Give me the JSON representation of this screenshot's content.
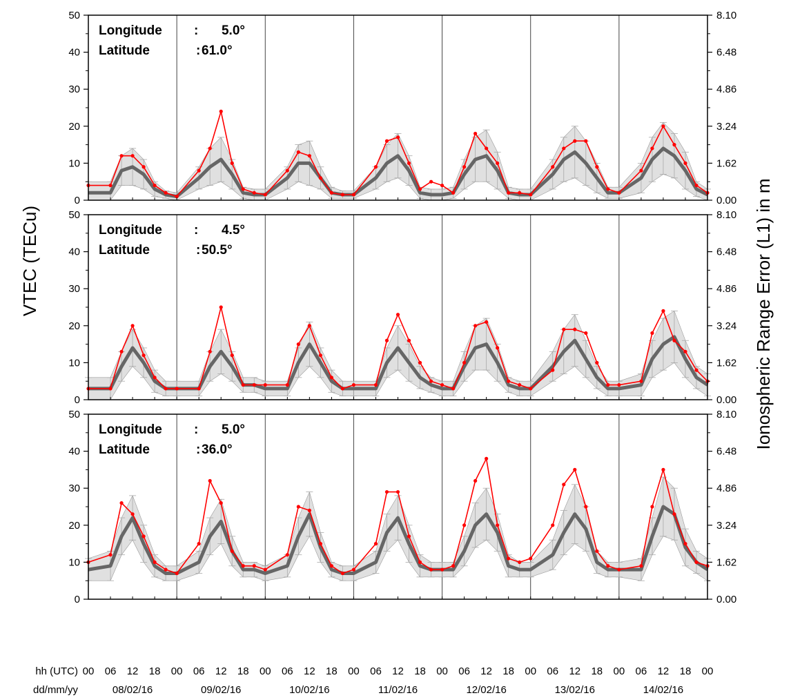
{
  "chart_data": {
    "type": "line",
    "ylabel": "VTEC (TECu)",
    "ylabel_right": "Ionospheric Range Error (L1) in m",
    "ylim": [
      0,
      50
    ],
    "y_ticks": [
      0,
      10,
      20,
      30,
      40,
      50
    ],
    "y2_ticks": [
      "0.00",
      "1.62",
      "3.24",
      "4.86",
      "6.48",
      "8.10"
    ],
    "x_row_labels": [
      "hh (UTC)",
      "dd/mm/yy"
    ],
    "hour_ticks": [
      "00",
      "06",
      "12",
      "18"
    ],
    "final_hour_tick": "00",
    "dates": [
      "08/02/16",
      "09/02/16",
      "10/02/16",
      "11/02/16",
      "12/02/16",
      "13/02/16",
      "14/02/16"
    ],
    "x_unit": "hours (UTC) from 08/02/16 00:00",
    "series_colors": {
      "current": "#ff0000",
      "median": "#666666",
      "band": "#bbbbbb"
    },
    "panels": [
      {
        "longitude_label": "Longitude",
        "longitude_sep": ":",
        "longitude_value": "5.0°",
        "latitude_label": "Latitude",
        "latitude_sep": ":",
        "latitude_value": "61.0°",
        "x": [
          0,
          6,
          9,
          12,
          15,
          18,
          21,
          24,
          30,
          33,
          36,
          39,
          42,
          45,
          48,
          54,
          57,
          60,
          63,
          66,
          69,
          72,
          78,
          81,
          84,
          87,
          90,
          93,
          96,
          99,
          102,
          105,
          108,
          111,
          114,
          117,
          120,
          126,
          129,
          132,
          135,
          138,
          141,
          144,
          150,
          153,
          156,
          159,
          162,
          165,
          168
        ],
        "current": [
          4,
          4,
          12,
          12,
          9,
          4,
          2,
          1,
          8,
          14,
          24,
          10,
          3,
          2,
          1.5,
          8,
          13,
          12,
          6,
          2,
          1.5,
          1.5,
          9,
          16,
          17,
          10,
          3,
          5,
          4,
          2,
          9,
          18,
          14,
          10,
          2,
          2,
          1.5,
          9,
          14,
          16,
          16,
          9,
          3,
          2,
          8,
          14,
          20,
          15,
          10,
          4,
          2
        ],
        "median": [
          2,
          2,
          8,
          9,
          7,
          3,
          1.5,
          1,
          6,
          9,
          11,
          7,
          2,
          1.5,
          1.5,
          6,
          10,
          10,
          6,
          2,
          1.5,
          1.5,
          6,
          10,
          12,
          8,
          2,
          1.5,
          1.5,
          2,
          7,
          11,
          12,
          8,
          2,
          1.5,
          1.5,
          7,
          11,
          13,
          10,
          6,
          2,
          2,
          6,
          11,
          14,
          12,
          8,
          3,
          1.5
        ],
        "band": [
          3,
          3,
          4,
          5,
          4,
          2,
          1,
          1,
          3,
          5,
          6,
          4,
          1.5,
          1.5,
          1.5,
          3,
          5,
          6,
          3,
          1.5,
          1,
          1,
          3,
          5,
          6,
          4,
          1.5,
          1.5,
          1.5,
          1.5,
          4,
          6,
          7,
          5,
          1.5,
          1.5,
          1.5,
          4,
          6,
          7,
          6,
          4,
          1.5,
          1.5,
          4,
          6,
          7,
          6,
          5,
          2,
          1.5
        ]
      },
      {
        "longitude_label": "Longitude",
        "longitude_sep": ":",
        "longitude_value": "4.5°",
        "latitude_label": "Latitude",
        "latitude_sep": ":",
        "latitude_value": "50.5°",
        "x": [
          0,
          6,
          9,
          12,
          15,
          18,
          21,
          24,
          30,
          33,
          36,
          39,
          42,
          45,
          48,
          54,
          57,
          60,
          63,
          66,
          69,
          72,
          78,
          81,
          84,
          87,
          90,
          93,
          96,
          99,
          102,
          105,
          108,
          111,
          114,
          117,
          120,
          126,
          129,
          132,
          135,
          138,
          141,
          144,
          150,
          153,
          156,
          159,
          162,
          165,
          168
        ],
        "current": [
          3,
          3,
          13,
          20,
          12,
          6,
          3,
          3,
          3,
          13,
          25,
          12,
          4,
          4,
          4,
          4,
          15,
          20,
          12,
          6,
          3,
          4,
          4,
          16,
          23,
          16,
          10,
          5,
          4,
          3,
          10,
          20,
          21,
          14,
          5,
          4,
          3,
          8,
          19,
          19,
          18,
          10,
          4,
          4,
          5,
          18,
          24,
          16,
          13,
          8,
          5
        ],
        "median": [
          3,
          3,
          9,
          14,
          10,
          5,
          3,
          3,
          3,
          9,
          13,
          9,
          4,
          4,
          3,
          3,
          10,
          15,
          10,
          5,
          3,
          3,
          3,
          10,
          14,
          10,
          6,
          4,
          3,
          3,
          9,
          14,
          15,
          10,
          4,
          3,
          3,
          9,
          13,
          16,
          11,
          6,
          3,
          3,
          4,
          11,
          15,
          17,
          11,
          6,
          4
        ],
        "band": [
          3,
          3,
          4,
          5,
          4,
          3,
          2,
          2,
          2,
          4,
          6,
          4,
          2,
          2,
          2,
          2,
          4,
          6,
          4,
          3,
          2,
          2,
          2,
          4,
          6,
          5,
          3,
          2,
          2,
          2,
          4,
          6,
          7,
          5,
          2,
          2,
          2,
          4,
          6,
          7,
          5,
          3,
          2,
          2,
          3,
          5,
          7,
          7,
          5,
          3,
          3
        ]
      },
      {
        "longitude_label": "Longitude",
        "longitude_sep": ":",
        "longitude_value": "5.0°",
        "latitude_label": "Latitude",
        "latitude_sep": ":",
        "latitude_value": "36.0°",
        "x": [
          0,
          6,
          9,
          12,
          15,
          18,
          21,
          24,
          30,
          33,
          36,
          39,
          42,
          45,
          48,
          54,
          57,
          60,
          63,
          66,
          69,
          72,
          78,
          81,
          84,
          87,
          90,
          93,
          96,
          99,
          102,
          105,
          108,
          111,
          114,
          117,
          120,
          126,
          129,
          132,
          135,
          138,
          141,
          144,
          150,
          153,
          156,
          159,
          162,
          165,
          168
        ],
        "current": [
          10,
          12,
          26,
          23,
          17,
          10,
          8,
          7,
          15,
          32,
          26,
          13,
          9,
          9,
          8,
          12,
          25,
          24,
          15,
          9,
          7,
          8,
          15,
          29,
          29,
          17,
          10,
          8,
          8,
          9,
          20,
          32,
          38,
          20,
          11,
          10,
          11,
          20,
          31,
          35,
          25,
          13,
          9,
          8,
          9,
          25,
          35,
          23,
          15,
          10,
          9
        ],
        "median": [
          8,
          9,
          17,
          22,
          15,
          9,
          7,
          7,
          10,
          17,
          21,
          13,
          8,
          8,
          7,
          9,
          17,
          23,
          14,
          8,
          7,
          7,
          10,
          18,
          22,
          15,
          9,
          8,
          8,
          8,
          13,
          20,
          23,
          18,
          9,
          8,
          8,
          12,
          18,
          23,
          19,
          10,
          8,
          8,
          8,
          17,
          25,
          23,
          14,
          10,
          8
        ],
        "band": [
          3,
          4,
          5,
          6,
          5,
          3,
          2,
          2,
          3,
          5,
          6,
          4,
          2,
          2,
          2,
          3,
          5,
          6,
          4,
          2,
          2,
          2,
          3,
          5,
          6,
          5,
          3,
          2,
          2,
          2,
          4,
          6,
          7,
          5,
          3,
          2,
          2,
          4,
          6,
          8,
          6,
          3,
          2,
          2,
          3,
          5,
          8,
          7,
          5,
          3,
          3
        ]
      }
    ]
  }
}
